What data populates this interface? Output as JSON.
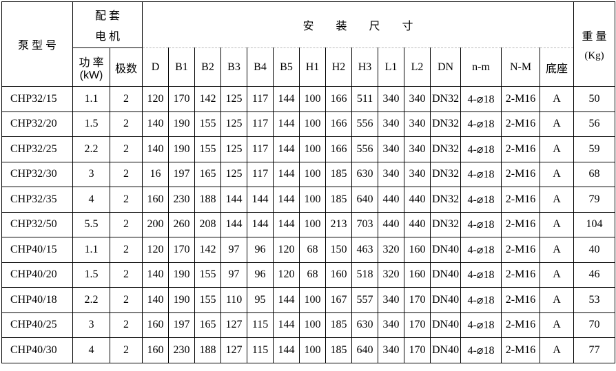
{
  "header": {
    "pump_model": "泵 型 号",
    "motor_group_line1": "配 套",
    "motor_group_line2": "电 机",
    "power_line1": "功 率",
    "power_line2": "(kW)",
    "poles": "极数",
    "install_group": "安　　装　　尺　　寸",
    "weight_line1": "重 量",
    "weight_line2": "(Kg)",
    "dims": [
      "D",
      "B1",
      "B2",
      "B3",
      "B4",
      "B5",
      "H1",
      "H2",
      "H3",
      "L1",
      "L2",
      "DN",
      "n-m",
      "N-M",
      "底座"
    ]
  },
  "rows": [
    [
      "CHP32/15",
      "1.1",
      "2",
      "120",
      "170",
      "142",
      "125",
      "117",
      "144",
      "100",
      "166",
      "511",
      "340",
      "340",
      "DN32",
      "4-⌀18",
      "2-M16",
      "A",
      "50"
    ],
    [
      "CHP32/20",
      "1.5",
      "2",
      "140",
      "190",
      "155",
      "125",
      "117",
      "144",
      "100",
      "166",
      "556",
      "340",
      "340",
      "DN32",
      "4-⌀18",
      "2-M16",
      "A",
      "56"
    ],
    [
      "CHP32/25",
      "2.2",
      "2",
      "140",
      "190",
      "155",
      "125",
      "117",
      "144",
      "100",
      "166",
      "556",
      "340",
      "340",
      "DN32",
      "4-⌀18",
      "2-M16",
      "A",
      "59"
    ],
    [
      "CHP32/30",
      "3",
      "2",
      "16",
      "197",
      "165",
      "125",
      "117",
      "144",
      "100",
      "185",
      "630",
      "340",
      "340",
      "DN32",
      "4-⌀18",
      "2-M16",
      "A",
      "68"
    ],
    [
      "CHP32/35",
      "4",
      "2",
      "160",
      "230",
      "188",
      "144",
      "144",
      "144",
      "100",
      "185",
      "640",
      "440",
      "440",
      "DN32",
      "4-⌀18",
      "2-M16",
      "A",
      "79"
    ],
    [
      "CHP32/50",
      "5.5",
      "2",
      "200",
      "260",
      "208",
      "144",
      "144",
      "144",
      "100",
      "213",
      "703",
      "440",
      "440",
      "DN32",
      "4-⌀18",
      "2-M16",
      "A",
      "104"
    ],
    [
      "CHP40/15",
      "1.1",
      "2",
      "120",
      "170",
      "142",
      "97",
      "96",
      "120",
      "68",
      "150",
      "463",
      "320",
      "160",
      "DN40",
      "4-⌀18",
      "2-M16",
      "A",
      "40"
    ],
    [
      "CHP40/20",
      "1.5",
      "2",
      "140",
      "190",
      "155",
      "97",
      "96",
      "120",
      "68",
      "160",
      "518",
      "320",
      "160",
      "DN40",
      "4-⌀18",
      "2-M16",
      "A",
      "46"
    ],
    [
      "CHP40/18",
      "2.2",
      "2",
      "140",
      "190",
      "155",
      "110",
      "95",
      "144",
      "100",
      "167",
      "557",
      "340",
      "170",
      "DN40",
      "4-⌀18",
      "2-M16",
      "A",
      "53"
    ],
    [
      "CHP40/25",
      "3",
      "2",
      "160",
      "197",
      "165",
      "127",
      "115",
      "144",
      "100",
      "185",
      "630",
      "340",
      "170",
      "DN40",
      "4-⌀18",
      "2-M16",
      "A",
      "70"
    ],
    [
      "CHP40/30",
      "4",
      "2",
      "160",
      "230",
      "188",
      "127",
      "115",
      "144",
      "100",
      "185",
      "640",
      "340",
      "170",
      "DN40",
      "4-⌀18",
      "2-M16",
      "A",
      "77"
    ]
  ]
}
